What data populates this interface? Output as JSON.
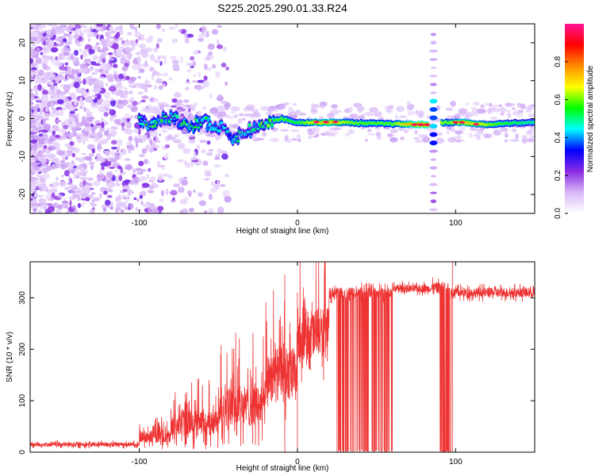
{
  "title": "S225.2025.290.01.33.R24",
  "chart_data": [
    {
      "type": "heatmap",
      "name": "spectrogram",
      "xlabel": "Height of straight line (km)",
      "ylabel": "Frequency (Hz)",
      "xlim": [
        -169,
        150
      ],
      "ylim": [
        -25,
        25
      ],
      "xticks": [
        -100,
        0,
        100
      ],
      "yticks": [
        -20,
        -10,
        0,
        10,
        20
      ],
      "colorbar": {
        "label": "Normalized spectral amplitude",
        "ticks": [
          0.0,
          0.2,
          0.4,
          0.6,
          0.8
        ],
        "range": [
          0,
          1
        ],
        "colormap": [
          "#ffffff",
          "#d8b8f8",
          "#8a2be2",
          "#0000ff",
          "#00ffff",
          "#00ff00",
          "#ffff00",
          "#ff8c00",
          "#ff0000",
          "#ff1493"
        ]
      },
      "ridge": [
        {
          "x": -100,
          "freq": -1.0,
          "amp": 0.45
        },
        {
          "x": -90,
          "freq": -1.5,
          "amp": 0.5
        },
        {
          "x": -80,
          "freq": 0.5,
          "amp": 0.45
        },
        {
          "x": -70,
          "freq": -2.5,
          "amp": 0.5
        },
        {
          "x": -60,
          "freq": -1.0,
          "amp": 0.5
        },
        {
          "x": -50,
          "freq": -2.0,
          "amp": 0.45
        },
        {
          "x": -40,
          "freq": -5.0,
          "amp": 0.45
        },
        {
          "x": -30,
          "freq": -3.0,
          "amp": 0.45
        },
        {
          "x": -20,
          "freq": -1.0,
          "amp": 0.55
        },
        {
          "x": -10,
          "freq": 0.0,
          "amp": 0.6
        },
        {
          "x": 0,
          "freq": -1.0,
          "amp": 0.55
        },
        {
          "x": 10,
          "freq": -1.0,
          "amp": 0.7
        },
        {
          "x": 20,
          "freq": -1.0,
          "amp": 0.75
        },
        {
          "x": 30,
          "freq": -1.0,
          "amp": 0.65
        },
        {
          "x": 40,
          "freq": -1.2,
          "amp": 0.6
        },
        {
          "x": 50,
          "freq": -1.3,
          "amp": 0.6
        },
        {
          "x": 60,
          "freq": -1.4,
          "amp": 0.6
        },
        {
          "x": 70,
          "freq": -1.5,
          "amp": 0.75
        },
        {
          "x": 80,
          "freq": -1.6,
          "amp": 0.85
        },
        {
          "x": 95,
          "freq": -1.0,
          "amp": 0.6
        },
        {
          "x": 105,
          "freq": -1.0,
          "amp": 0.75
        },
        {
          "x": 115,
          "freq": -1.5,
          "amp": 0.7
        },
        {
          "x": 125,
          "freq": -1.5,
          "amp": 0.6
        },
        {
          "x": 135,
          "freq": -1.2,
          "amp": 0.55
        },
        {
          "x": 150,
          "freq": -1.0,
          "amp": 0.5
        }
      ],
      "vertical_stripe": {
        "x": 86,
        "ymin": -24,
        "ymax": 24
      }
    },
    {
      "type": "line",
      "name": "snr",
      "xlabel": "Height of straight line (km)",
      "ylabel": "SNR (10 * v/v)",
      "xlim": [
        -169,
        150
      ],
      "ylim": [
        0,
        370
      ],
      "xticks": [
        -100,
        0,
        100
      ],
      "yticks": [
        0,
        100,
        200,
        300
      ],
      "color": "#ee3333",
      "segments": [
        {
          "x_start": -169,
          "x_end": -100,
          "mean": 15,
          "amp": 8
        },
        {
          "x_start": -100,
          "x_end": -80,
          "mean": 30,
          "amp": 25
        },
        {
          "x_start": -80,
          "x_end": -50,
          "mean": 55,
          "amp": 50
        },
        {
          "x_start": -50,
          "x_end": -20,
          "mean": 90,
          "amp": 80
        },
        {
          "x_start": -20,
          "x_end": 0,
          "mean": 150,
          "amp": 110
        },
        {
          "x_start": 0,
          "x_end": 20,
          "mean": 230,
          "amp": 100
        },
        {
          "x_start": 20,
          "x_end": 60,
          "mean": 310,
          "amp": 20
        },
        {
          "x_start": 60,
          "x_end": 85,
          "mean": 318,
          "amp": 15
        },
        {
          "x_start": 85,
          "x_end": 97,
          "mean": 320,
          "amp": 20
        },
        {
          "x_start": 97,
          "x_end": 150,
          "mean": 310,
          "amp": 18
        }
      ],
      "dropouts": [
        {
          "x_start": 25,
          "x_end": 60,
          "min": 0,
          "note": "frequent drops to ~0"
        },
        {
          "x_start": 90,
          "x_end": 97,
          "min": 0,
          "note": "dense drops to ~0"
        }
      ],
      "spikes": [
        {
          "x": -8,
          "y": 345
        },
        {
          "x": 0,
          "y": 310
        },
        {
          "x": 98,
          "y": 370
        }
      ]
    }
  ]
}
